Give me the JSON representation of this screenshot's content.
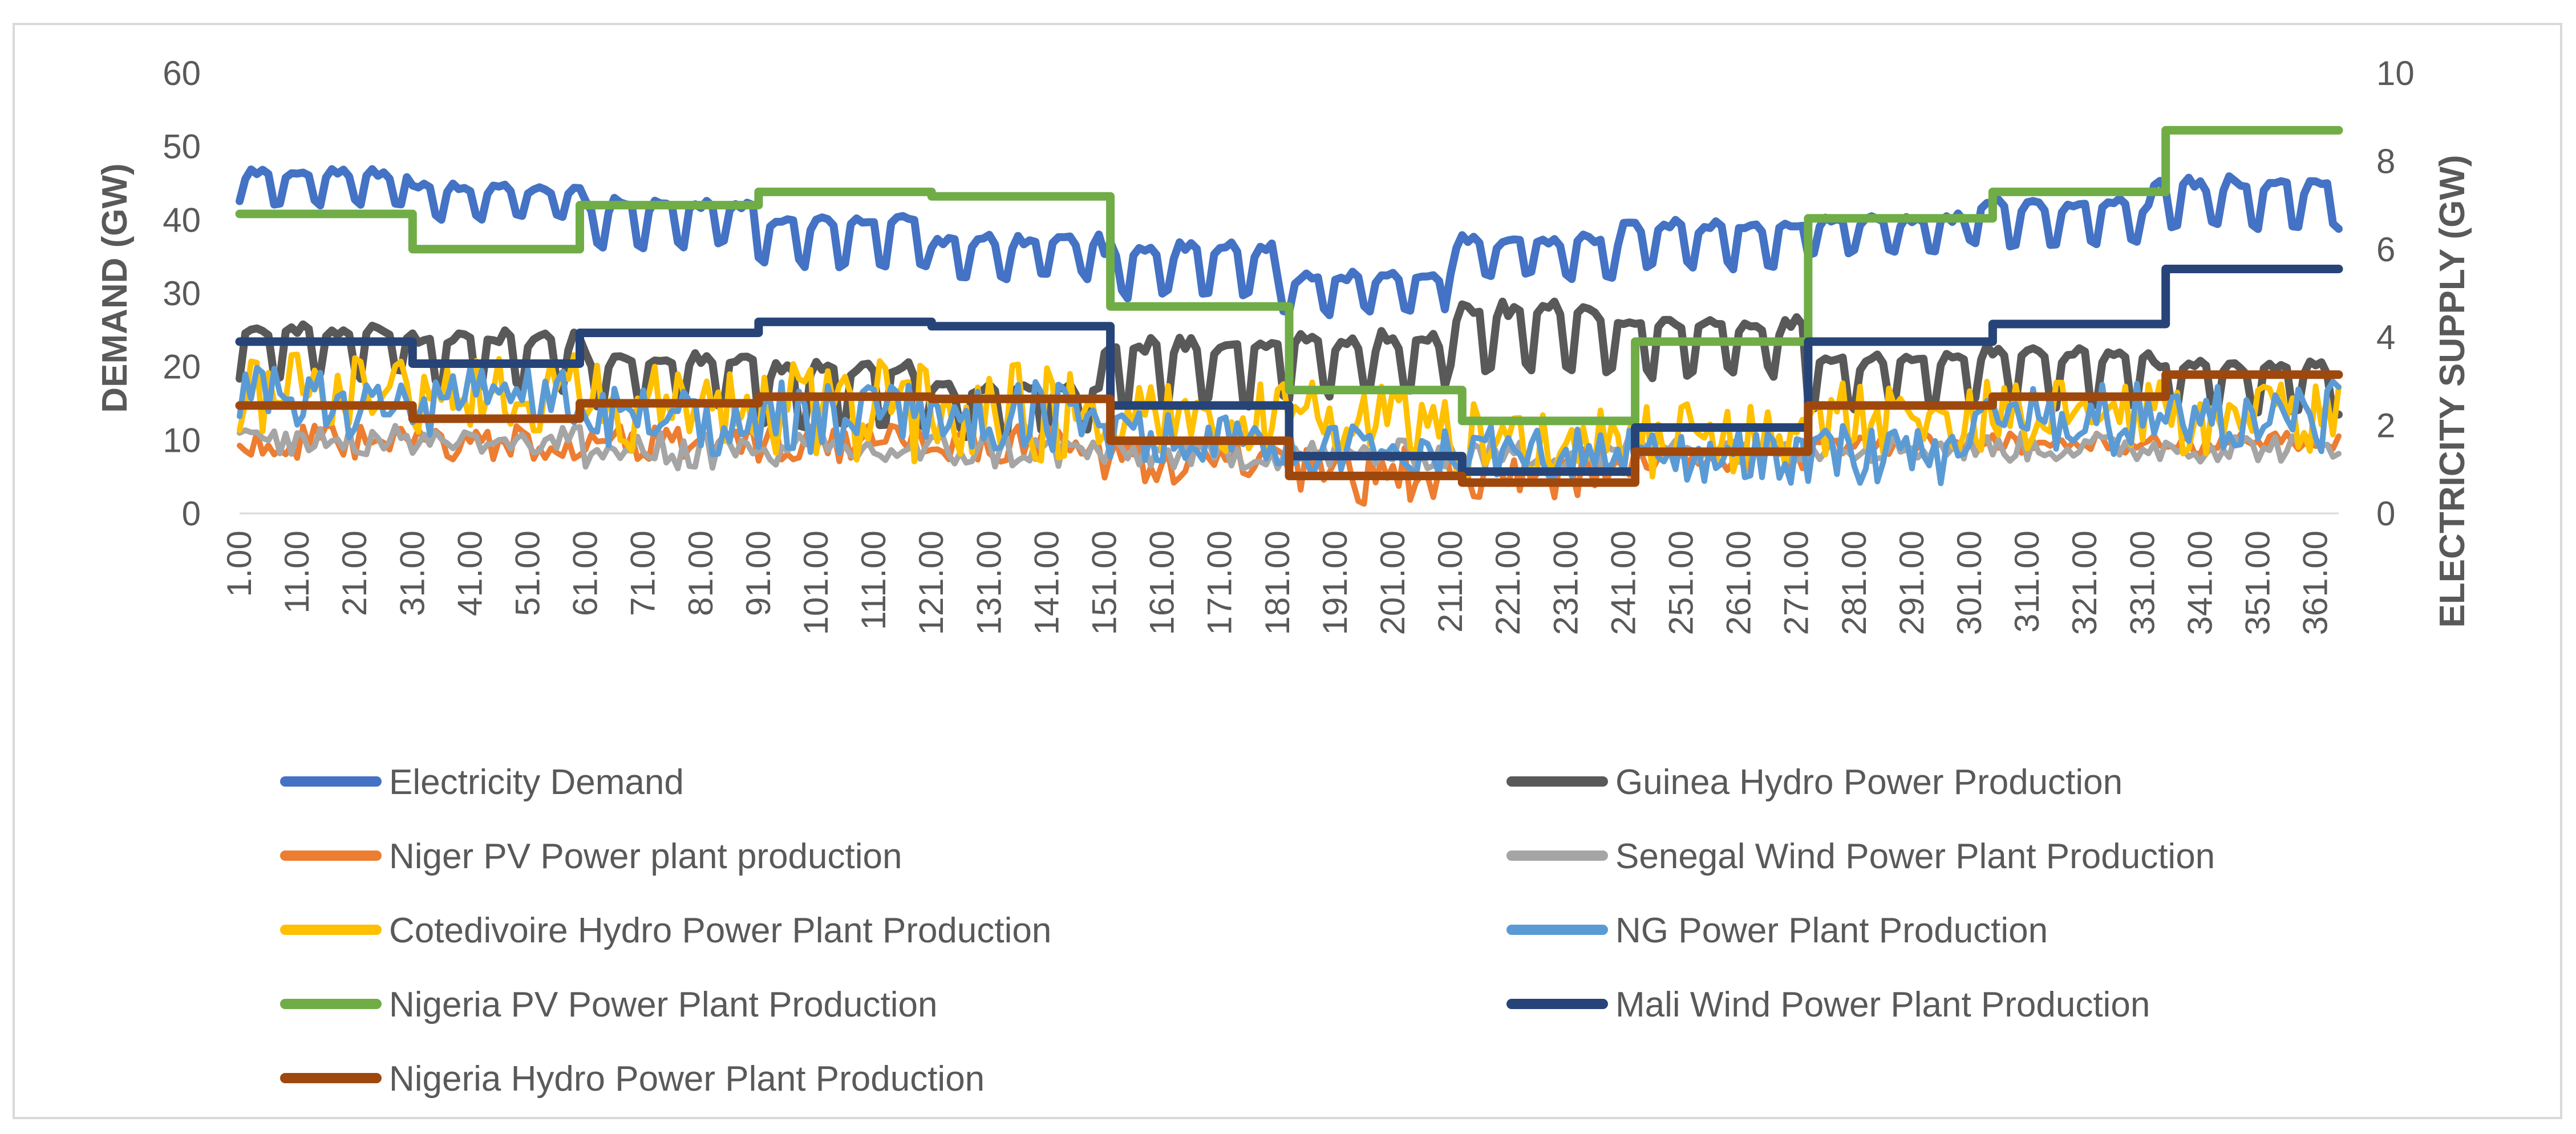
{
  "chart_data": {
    "type": "line",
    "title": "",
    "xlabel": "",
    "ylabel_left": "DEMAND (GW)",
    "ylabel_right": "ELECTRICITY SUPPLY (GW)",
    "ylim_left": [
      0,
      60
    ],
    "ylim_right": [
      0,
      10
    ],
    "yticks_left": [
      "0",
      "10",
      "20",
      "30",
      "40",
      "50",
      "60"
    ],
    "yticks_right": [
      "0",
      "2",
      "4",
      "6",
      "8",
      "10"
    ],
    "x_range": [
      1,
      365
    ],
    "xticks": [
      "1.00",
      "11.00",
      "21.00",
      "31.00",
      "41.00",
      "51.00",
      "61.00",
      "71.00",
      "81.00",
      "91.00",
      "101.00",
      "111.00",
      "121.00",
      "131.00",
      "141.00",
      "151.00",
      "161.00",
      "171.00",
      "181.00",
      "191.00",
      "201.00",
      "211.00",
      "221.00",
      "231.00",
      "241.00",
      "251.00",
      "261.00",
      "271.00",
      "281.00",
      "291.00",
      "301.00",
      "311.00",
      "321.00",
      "331.00",
      "341.00",
      "351.00",
      "361.00"
    ],
    "grid": false,
    "legend_position": "bottom",
    "series": [
      {
        "name": "Electricity Demand",
        "axis": "left",
        "color": "#4472C4",
        "style": "weekly",
        "segments": [
          [
            1,
            30,
            41,
            47
          ],
          [
            31,
            60,
            39,
            45
          ],
          [
            61,
            90,
            35,
            43
          ],
          [
            91,
            120,
            32,
            41
          ],
          [
            121,
            150,
            31,
            38
          ],
          [
            151,
            180,
            28,
            37
          ],
          [
            181,
            210,
            26,
            33
          ],
          [
            211,
            240,
            31,
            38
          ],
          [
            241,
            272,
            32,
            40
          ],
          [
            273,
            300,
            34,
            41
          ],
          [
            301,
            332,
            35,
            43
          ],
          [
            333,
            365,
            37,
            46
          ]
        ]
      },
      {
        "name": "Guinea Hydro Power Production",
        "axis": "left",
        "color": "#595959",
        "style": "weekly",
        "segments": [
          [
            1,
            30,
            17,
            26
          ],
          [
            31,
            60,
            15,
            25
          ],
          [
            61,
            90,
            13,
            22
          ],
          [
            91,
            120,
            10,
            21
          ],
          [
            121,
            150,
            9,
            18
          ],
          [
            151,
            180,
            13,
            24
          ],
          [
            181,
            210,
            14,
            25
          ],
          [
            211,
            240,
            17,
            29
          ],
          [
            241,
            272,
            17,
            27
          ],
          [
            273,
            300,
            13,
            22
          ],
          [
            301,
            332,
            13,
            23
          ],
          [
            333,
            365,
            12,
            21
          ]
        ]
      },
      {
        "name": "Niger PV Power plant production",
        "axis": "left",
        "color": "#ED7D31",
        "style": "noise",
        "segments": [
          [
            1,
            150,
            7,
            12
          ],
          [
            151,
            180,
            4,
            10
          ],
          [
            181,
            210,
            1,
            9
          ],
          [
            211,
            240,
            2,
            9
          ],
          [
            241,
            272,
            5,
            10
          ],
          [
            273,
            365,
            8,
            11
          ]
        ]
      },
      {
        "name": "Senegal Wind Power Plant Production",
        "axis": "left",
        "color": "#A5A5A5",
        "style": "noise",
        "segments": [
          [
            1,
            60,
            8,
            12
          ],
          [
            61,
            150,
            6,
            11
          ],
          [
            151,
            240,
            6,
            10
          ],
          [
            241,
            365,
            7,
            11
          ]
        ]
      },
      {
        "name": "Cotedivoire Hydro Power Plant Production",
        "axis": "left",
        "color": "#FFC000",
        "style": "noise",
        "segments": [
          [
            1,
            60,
            11,
            22
          ],
          [
            61,
            150,
            7,
            21
          ],
          [
            151,
            210,
            8,
            18
          ],
          [
            211,
            272,
            5,
            15
          ],
          [
            273,
            365,
            8,
            18
          ]
        ]
      },
      {
        "name": "NG Power Plant Production",
        "axis": "left",
        "color": "#5B9BD5",
        "style": "noise",
        "segments": [
          [
            1,
            60,
            10,
            20
          ],
          [
            61,
            150,
            8,
            18
          ],
          [
            151,
            180,
            7,
            14
          ],
          [
            181,
            240,
            5,
            12
          ],
          [
            241,
            300,
            4,
            12
          ],
          [
            301,
            365,
            8,
            18
          ]
        ]
      },
      {
        "name": "Nigeria PV Power Plant Production",
        "axis": "right",
        "color": "#70AD47",
        "style": "step",
        "points": [
          [
            1,
            6.8
          ],
          [
            31,
            6.0
          ],
          [
            60,
            7.0
          ],
          [
            91,
            7.3
          ],
          [
            121,
            7.2
          ],
          [
            152,
            4.7
          ],
          [
            183,
            2.8
          ],
          [
            213,
            2.1
          ],
          [
            243,
            3.9
          ],
          [
            273,
            6.7
          ],
          [
            305,
            7.3
          ],
          [
            335,
            8.7
          ],
          [
            365,
            8.7
          ]
        ]
      },
      {
        "name": "Mali Wind Power Plant Production",
        "axis": "right",
        "color": "#264478",
        "style": "step",
        "points": [
          [
            1,
            3.9
          ],
          [
            31,
            3.4
          ],
          [
            60,
            4.1
          ],
          [
            91,
            4.35
          ],
          [
            121,
            4.25
          ],
          [
            152,
            2.45
          ],
          [
            183,
            1.3
          ],
          [
            213,
            0.95
          ],
          [
            243,
            1.95
          ],
          [
            273,
            3.9
          ],
          [
            305,
            4.3
          ],
          [
            335,
            5.55
          ],
          [
            365,
            5.55
          ]
        ]
      },
      {
        "name": "Nigeria Hydro Power Plant Production",
        "axis": "right",
        "color": "#9E480E",
        "style": "step",
        "points": [
          [
            1,
            2.45
          ],
          [
            31,
            2.15
          ],
          [
            60,
            2.5
          ],
          [
            91,
            2.65
          ],
          [
            121,
            2.6
          ],
          [
            152,
            1.65
          ],
          [
            183,
            0.85
          ],
          [
            213,
            0.7
          ],
          [
            243,
            1.4
          ],
          [
            273,
            2.45
          ],
          [
            305,
            2.65
          ],
          [
            335,
            3.15
          ],
          [
            365,
            3.15
          ]
        ]
      }
    ]
  }
}
